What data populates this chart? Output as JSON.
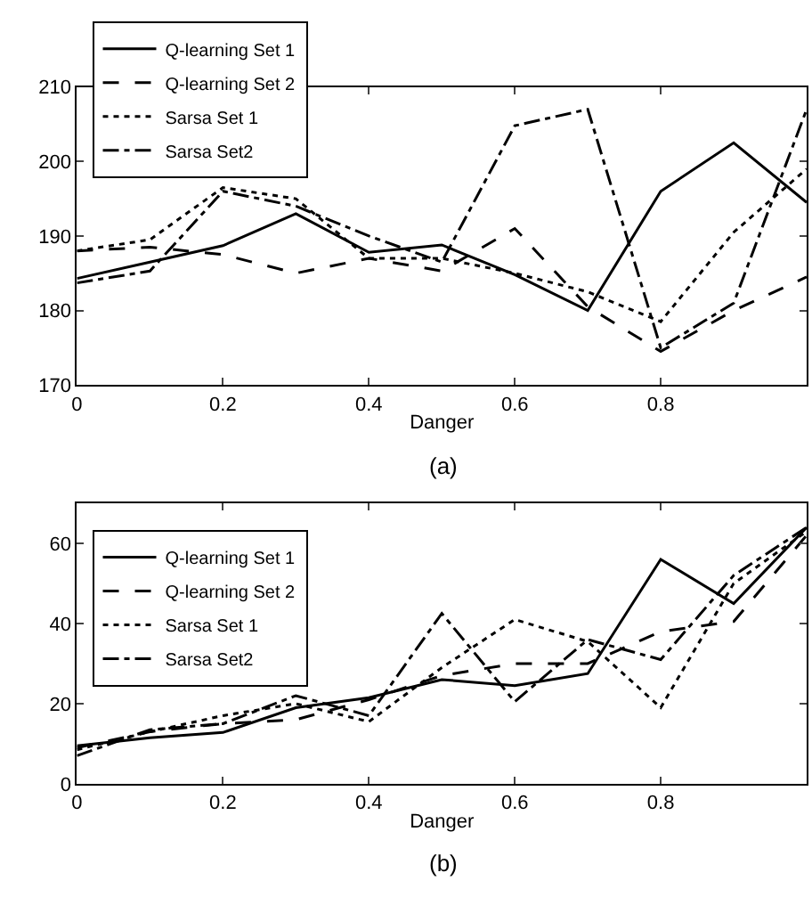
{
  "chart_data": [
    {
      "type": "line",
      "title": "(a)",
      "xlabel": "Danger",
      "x": [
        0,
        0.1,
        0.2,
        0.3,
        0.4,
        0.5,
        0.6,
        0.7,
        0.8,
        0.9,
        1.0
      ],
      "xlim": [
        0,
        1
      ],
      "xticks": [
        0,
        0.2,
        0.4,
        0.6,
        0.8
      ],
      "ylim": [
        170,
        210
      ],
      "yticks": [
        170,
        180,
        190,
        200,
        210
      ],
      "legend": "top left",
      "marker": "none",
      "series": [
        {
          "name": "Q-learning Set 1",
          "color": "#000000",
          "line_style": "solid",
          "values": [
            184.3,
            186.5,
            188.7,
            193,
            187.8,
            188.8,
            184.8,
            180,
            196,
            202.5,
            194.5
          ]
        },
        {
          "name": "Q-learning Set 2",
          "color": "#000000",
          "line_style": "dashed",
          "values": [
            188,
            188.5,
            187.5,
            185,
            187,
            185.3,
            191,
            180.5,
            174.5,
            180,
            184.5
          ]
        },
        {
          "name": "Sarsa Set 1",
          "color": "#000000",
          "line_style": "dotted",
          "values": [
            188,
            189.5,
            196.5,
            195,
            187,
            187,
            185,
            182.5,
            178.5,
            190.5,
            199
          ]
        },
        {
          "name": "Sarsa Set2",
          "color": "#000000",
          "line_style": "dashdot",
          "values": [
            183.7,
            185.3,
            196,
            194,
            190,
            186.5,
            204.8,
            207,
            175,
            181,
            207
          ]
        }
      ]
    },
    {
      "type": "line",
      "title": "(b)",
      "xlabel": "Danger",
      "x": [
        0,
        0.1,
        0.2,
        0.3,
        0.4,
        0.5,
        0.6,
        0.7,
        0.8,
        0.9,
        1.0
      ],
      "xlim": [
        0,
        1
      ],
      "xticks": [
        0,
        0.2,
        0.4,
        0.6,
        0.8
      ],
      "ylim": [
        0,
        70
      ],
      "yticks": [
        0,
        20,
        40,
        60
      ],
      "legend": "top left",
      "marker": "none",
      "series": [
        {
          "name": "Q-learning Set 1",
          "color": "#000000",
          "line_style": "solid",
          "values": [
            9.5,
            11.5,
            12.8,
            19,
            21.5,
            26,
            24.5,
            27.5,
            56,
            45,
            64
          ]
        },
        {
          "name": "Q-learning Set 2",
          "color": "#000000",
          "line_style": "dashed",
          "values": [
            9,
            13,
            15,
            16,
            21,
            27,
            30,
            30,
            38,
            40.5,
            62
          ]
        },
        {
          "name": "Sarsa Set 1",
          "color": "#000000",
          "line_style": "dotted",
          "values": [
            8.5,
            13,
            17,
            20,
            15.5,
            29,
            41,
            35.5,
            19,
            50,
            63
          ]
        },
        {
          "name": "Sarsa Set2",
          "color": "#000000",
          "line_style": "dashdot",
          "values": [
            7,
            13.5,
            15,
            22,
            17,
            42.5,
            20.5,
            36,
            31,
            52,
            64
          ]
        }
      ]
    }
  ]
}
